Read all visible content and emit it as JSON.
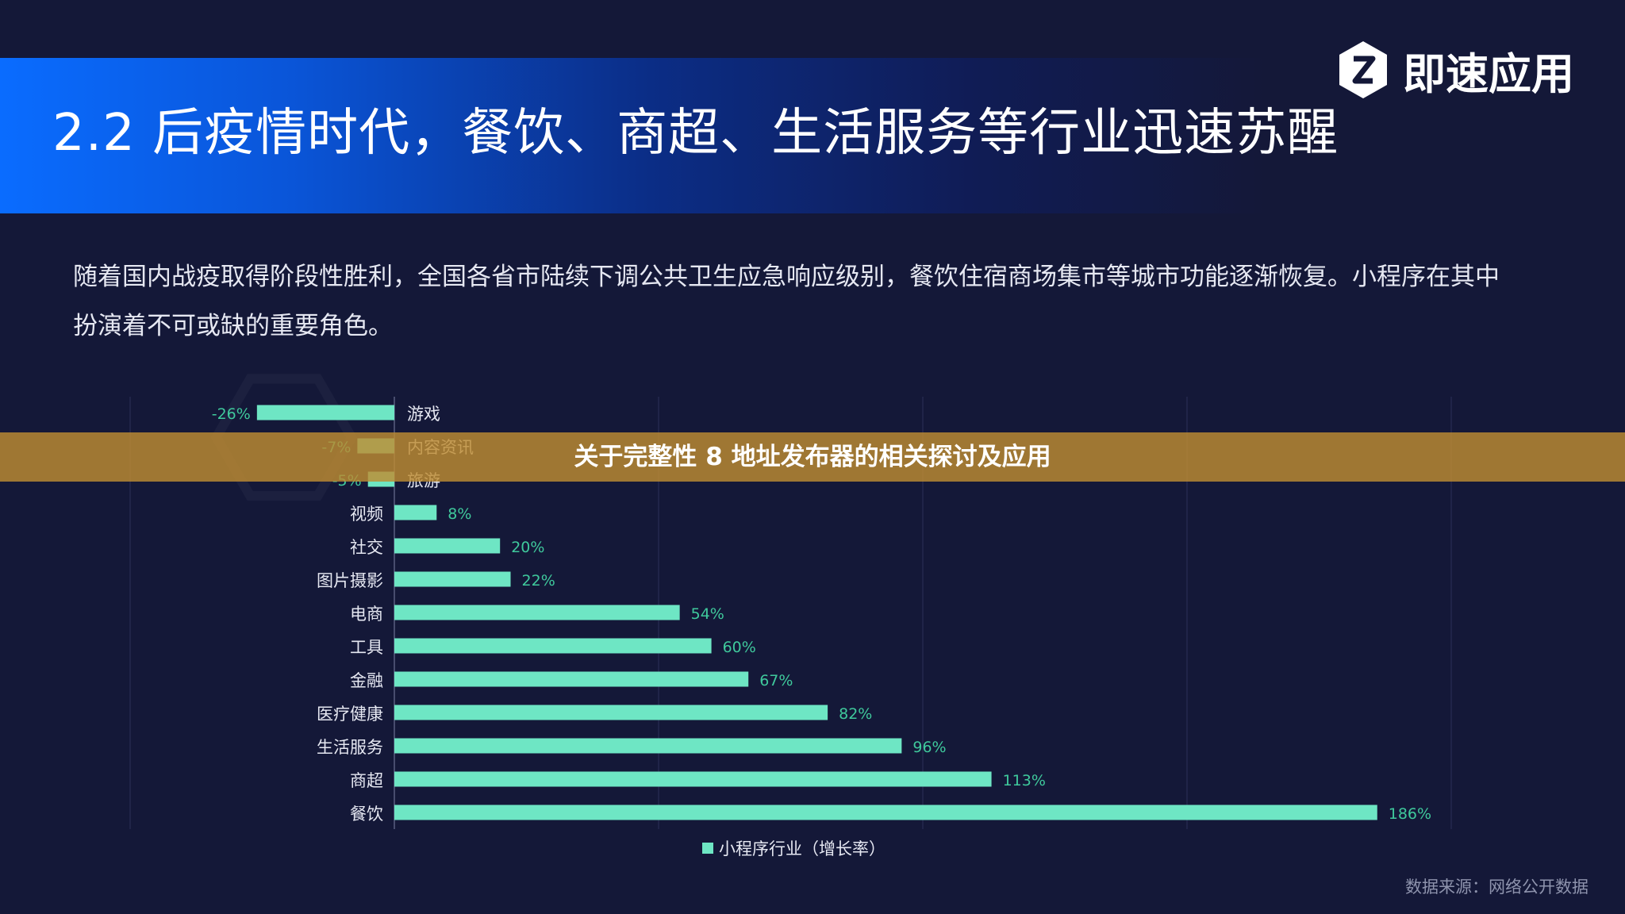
{
  "header": {
    "title": "2.2 后疫情时代，餐饮、商超、生活服务等行业迅速苏醒",
    "logo_text": "即速应用"
  },
  "intro": "随着国内战疫取得阶段性胜利，全国各省市陆续下调公共卫生应急响应级别，餐饮住宿商场集市等城市功能逐渐恢复。小程序在其中扮演着不可或缺的重要角色。",
  "overlay": {
    "text": "关于完整性 8 地址发布器的相关探讨及应用"
  },
  "source": "数据来源：网络公开数据",
  "colors": {
    "bar": "#6ee6c4",
    "value_label": "#3fc99c",
    "background": "#141838",
    "overlay": "#be8c32"
  },
  "chart_data": {
    "type": "bar",
    "orientation": "horizontal",
    "categories": [
      "游戏",
      "内容资讯",
      "旅游",
      "视频",
      "社交",
      "图片摄影",
      "电商",
      "工具",
      "金融",
      "医疗健康",
      "生活服务",
      "商超",
      "餐饮"
    ],
    "series": [
      {
        "name": "小程序行业（增长率）",
        "values": [
          -26,
          -7,
          -5,
          8,
          20,
          22,
          54,
          60,
          67,
          82,
          96,
          113,
          186
        ],
        "labels": [
          "-26%",
          "-7%",
          "-5%",
          "8%",
          "20%",
          "22%",
          "54%",
          "60%",
          "67%",
          "82%",
          "96%",
          "113%",
          "186%"
        ]
      }
    ],
    "xlim": [
      -50,
      200
    ],
    "grid": true,
    "legend": "bottom-center"
  }
}
